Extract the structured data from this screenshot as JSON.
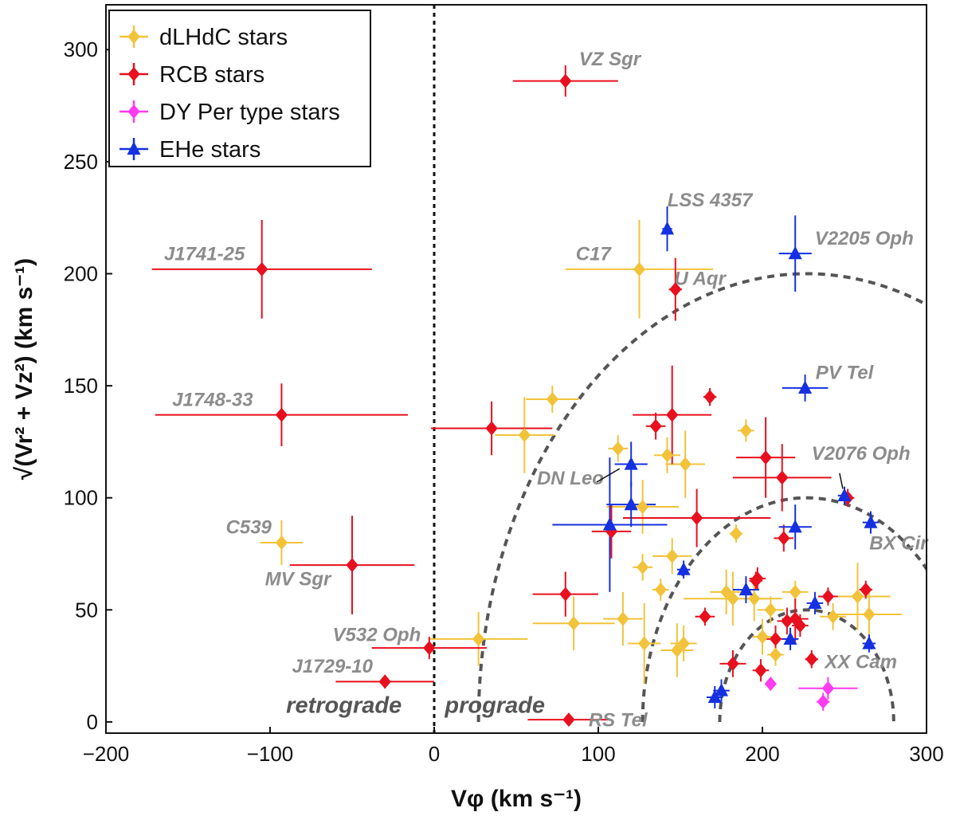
{
  "chart_data": {
    "type": "scatter",
    "title": "",
    "xlabel": "Vφ (km s⁻¹)",
    "ylabel": "√(Vr² + Vz²)  (km s⁻¹)",
    "xlim": [
      -200,
      300
    ],
    "ylim": [
      -5,
      320
    ],
    "xticks": [
      -200,
      -100,
      0,
      100,
      200,
      300
    ],
    "yticks": [
      0,
      50,
      100,
      150,
      200,
      250,
      300
    ],
    "xtick_labels": [
      "−200",
      "−100",
      "0",
      "100",
      "200",
      "300"
    ],
    "ytick_labels": [
      "0",
      "50",
      "100",
      "150",
      "200",
      "250",
      "300"
    ],
    "grid": false,
    "legend_position": "top-left",
    "colors": {
      "dLHdC": "#f2c33a",
      "RCB": "#e8101e",
      "DYPer": "#ff3cf0",
      "EHe": "#1530e0",
      "label": "#8c8c8c",
      "guide": "#555555"
    },
    "series": [
      {
        "name": "dLHdC stars",
        "key": "dLHdC",
        "marker": "diamond",
        "points": [
          {
            "x": 125,
            "y": 202,
            "xe": 45,
            "ye": 22
          },
          {
            "x": -93,
            "y": 80,
            "xe": 13,
            "ye": 10
          },
          {
            "x": 72,
            "y": 144,
            "xe": 16,
            "ye": 6
          },
          {
            "x": 55,
            "y": 128,
            "xe": 18,
            "ye": 17
          },
          {
            "x": 112,
            "y": 122,
            "xe": 6,
            "ye": 6
          },
          {
            "x": 142,
            "y": 119,
            "xe": 8,
            "ye": 8
          },
          {
            "x": 153,
            "y": 115,
            "xe": 12,
            "ye": 15
          },
          {
            "x": 190,
            "y": 130,
            "xe": 5,
            "ye": 5
          },
          {
            "x": 127,
            "y": 96,
            "xe": 22,
            "ye": 12
          },
          {
            "x": 184,
            "y": 84,
            "xe": 4,
            "ye": 4
          },
          {
            "x": 145,
            "y": 74,
            "xe": 12,
            "ye": 8
          },
          {
            "x": 127,
            "y": 69,
            "xe": 6,
            "ye": 6
          },
          {
            "x": 138,
            "y": 59,
            "xe": 5,
            "ye": 5
          },
          {
            "x": 115,
            "y": 46,
            "xe": 12,
            "ye": 12
          },
          {
            "x": 85,
            "y": 44,
            "xe": 25,
            "ye": 12
          },
          {
            "x": 27,
            "y": 37,
            "xe": 30,
            "ye": 12
          },
          {
            "x": 128,
            "y": 35,
            "xe": 10,
            "ye": 18
          },
          {
            "x": 148,
            "y": 32,
            "xe": 10,
            "ye": 12
          },
          {
            "x": 152,
            "y": 35,
            "xe": 8,
            "ye": 8
          },
          {
            "x": 182,
            "y": 55,
            "xe": 30,
            "ye": 12
          },
          {
            "x": 195,
            "y": 55,
            "xe": 8,
            "ye": 10
          },
          {
            "x": 205,
            "y": 50,
            "xe": 8,
            "ye": 6
          },
          {
            "x": 220,
            "y": 58,
            "xe": 8,
            "ye": 5
          },
          {
            "x": 200,
            "y": 38,
            "xe": 6,
            "ye": 8
          },
          {
            "x": 208,
            "y": 30,
            "xe": 5,
            "ye": 5
          },
          {
            "x": 243,
            "y": 47,
            "xe": 8,
            "ye": 6
          },
          {
            "x": 258,
            "y": 56,
            "xe": 20,
            "ye": 15
          },
          {
            "x": 265,
            "y": 48,
            "xe": 20,
            "ye": 10
          },
          {
            "x": 178,
            "y": 58,
            "xe": 10,
            "ye": 10
          }
        ]
      },
      {
        "name": "RCB stars",
        "key": "RCB",
        "marker": "diamond",
        "points": [
          {
            "x": 80,
            "y": 286,
            "xe": 32,
            "ye": 7
          },
          {
            "x": -105,
            "y": 202,
            "xe": 67,
            "ye": 22
          },
          {
            "x": 147,
            "y": 193,
            "xe": 4,
            "ye": 14
          },
          {
            "x": -93,
            "y": 137,
            "xe": 77,
            "ye": 14
          },
          {
            "x": 35,
            "y": 131,
            "xe": 37,
            "ye": 12
          },
          {
            "x": 168,
            "y": 145,
            "xe": 4,
            "ye": 4
          },
          {
            "x": 145,
            "y": 137,
            "xe": 24,
            "ye": 22
          },
          {
            "x": 135,
            "y": 132,
            "xe": 6,
            "ye": 6
          },
          {
            "x": 202,
            "y": 118,
            "xe": 18,
            "ye": 18
          },
          {
            "x": 212,
            "y": 109,
            "xe": 30,
            "ye": 15
          },
          {
            "x": 252,
            "y": 100,
            "xe": 4,
            "ye": 4
          },
          {
            "x": 160,
            "y": 91,
            "xe": 45,
            "ye": 13
          },
          {
            "x": 108,
            "y": 85,
            "xe": 12,
            "ye": 12
          },
          {
            "x": 213,
            "y": 82,
            "xe": 6,
            "ye": 6
          },
          {
            "x": -50,
            "y": 70,
            "xe": 38,
            "ye": 22
          },
          {
            "x": 80,
            "y": 57,
            "xe": 20,
            "ye": 10
          },
          {
            "x": 197,
            "y": 64,
            "xe": 5,
            "ye": 5
          },
          {
            "x": 196,
            "y": 63,
            "xe": 4,
            "ye": 4
          },
          {
            "x": 240,
            "y": 56,
            "xe": 6,
            "ye": 4
          },
          {
            "x": 263,
            "y": 59,
            "xe": 4,
            "ye": 4
          },
          {
            "x": 165,
            "y": 47,
            "xe": 6,
            "ye": 4
          },
          {
            "x": 215,
            "y": 45,
            "xe": 6,
            "ye": 6
          },
          {
            "x": 220,
            "y": 46,
            "xe": 8,
            "ye": 10
          },
          {
            "x": 223,
            "y": 43,
            "xe": 5,
            "ye": 5
          },
          {
            "x": 208,
            "y": 37,
            "xe": 8,
            "ye": 6
          },
          {
            "x": 182,
            "y": 26,
            "xe": 8,
            "ye": 6
          },
          {
            "x": 199,
            "y": 23,
            "xe": 5,
            "ye": 5
          },
          {
            "x": 230,
            "y": 28,
            "xe": 4,
            "ye": 4
          },
          {
            "x": -3,
            "y": 33,
            "xe": 35,
            "ye": 5
          },
          {
            "x": -30,
            "y": 18,
            "xe": 30,
            "ye": 3
          },
          {
            "x": 82,
            "y": 1,
            "xe": 25,
            "ye": 2
          }
        ]
      },
      {
        "name": "DY Per type stars",
        "key": "DYPer",
        "marker": "diamond",
        "points": [
          {
            "x": 205,
            "y": 17,
            "xe": 3,
            "ye": 3
          },
          {
            "x": 240,
            "y": 15,
            "xe": 18,
            "ye": 5
          },
          {
            "x": 237,
            "y": 9,
            "xe": 4,
            "ye": 4
          }
        ]
      },
      {
        "name": "EHe stars",
        "key": "EHe",
        "marker": "triangle",
        "points": [
          {
            "x": 142,
            "y": 220,
            "xe": 3,
            "ye": 10
          },
          {
            "x": 220,
            "y": 209,
            "xe": 10,
            "ye": 17
          },
          {
            "x": 226,
            "y": 149,
            "xe": 14,
            "ye": 6
          },
          {
            "x": 120,
            "y": 115,
            "xe": 10,
            "ye": 10
          },
          {
            "x": 120,
            "y": 97,
            "xe": 15,
            "ye": 10
          },
          {
            "x": 107,
            "y": 88,
            "xe": 35,
            "ye": 30
          },
          {
            "x": 220,
            "y": 87,
            "xe": 10,
            "ye": 10
          },
          {
            "x": 250,
            "y": 101,
            "xe": 4,
            "ye": 4
          },
          {
            "x": 266,
            "y": 89,
            "xe": 5,
            "ye": 5
          },
          {
            "x": 152,
            "y": 68,
            "xe": 4,
            "ye": 4
          },
          {
            "x": 190,
            "y": 59,
            "xe": 8,
            "ye": 6
          },
          {
            "x": 232,
            "y": 53,
            "xe": 5,
            "ye": 5
          },
          {
            "x": 217,
            "y": 37,
            "xe": 5,
            "ye": 5
          },
          {
            "x": 265,
            "y": 35,
            "xe": 4,
            "ye": 4
          },
          {
            "x": 175,
            "y": 14,
            "xe": 5,
            "ye": 5
          },
          {
            "x": 171,
            "y": 11,
            "xe": 5,
            "ye": 5
          }
        ]
      }
    ],
    "guide_curves": [
      {
        "cx": 227,
        "rx": 200,
        "ry": 200
      },
      {
        "cx": 227,
        "rx": 100,
        "ry": 100
      },
      {
        "cx": 227,
        "rx": 53,
        "ry": 50
      }
    ],
    "zero_line_x": 0,
    "star_labels": [
      {
        "text": "VZ Sgr",
        "x": 107,
        "y": 293,
        "anchor": "middle"
      },
      {
        "text": "LSS 4357",
        "x": 168,
        "y": 230,
        "anchor": "middle"
      },
      {
        "text": "J1741-25",
        "x": -140,
        "y": 206,
        "anchor": "middle"
      },
      {
        "text": "C17",
        "x": 97,
        "y": 206,
        "anchor": "middle"
      },
      {
        "text": "V2205 Oph",
        "x": 262,
        "y": 213,
        "anchor": "middle"
      },
      {
        "text": "U Aqr",
        "x": 162,
        "y": 195,
        "anchor": "middle"
      },
      {
        "text": "PV Tel",
        "x": 250,
        "y": 153,
        "anchor": "middle"
      },
      {
        "text": "J1748-33",
        "x": -135,
        "y": 141,
        "anchor": "middle"
      },
      {
        "text": "DN Leo",
        "x": 83,
        "y": 106,
        "anchor": "middle"
      },
      {
        "text": "V2076 Oph",
        "x": 260,
        "y": 117,
        "anchor": "middle"
      },
      {
        "text": "C539",
        "x": -113,
        "y": 84,
        "anchor": "middle"
      },
      {
        "text": "BX Cir",
        "x": 283,
        "y": 77,
        "anchor": "middle"
      },
      {
        "text": "MV Sgr",
        "x": -83,
        "y": 61,
        "anchor": "middle"
      },
      {
        "text": "V532 Oph",
        "x": -35,
        "y": 36,
        "anchor": "middle"
      },
      {
        "text": "XX Cam",
        "x": 260,
        "y": 24,
        "anchor": "middle"
      },
      {
        "text": "J1729-10",
        "x": -62,
        "y": 22,
        "anchor": "middle"
      },
      {
        "text": "RS Tel",
        "x": 112,
        "y": -2,
        "anchor": "middle"
      }
    ],
    "region_labels": [
      {
        "text": "retrograde",
        "x": -55,
        "y": 4,
        "anchor": "middle"
      },
      {
        "text": "prograde",
        "x": 37,
        "y": 4,
        "anchor": "middle"
      }
    ]
  }
}
